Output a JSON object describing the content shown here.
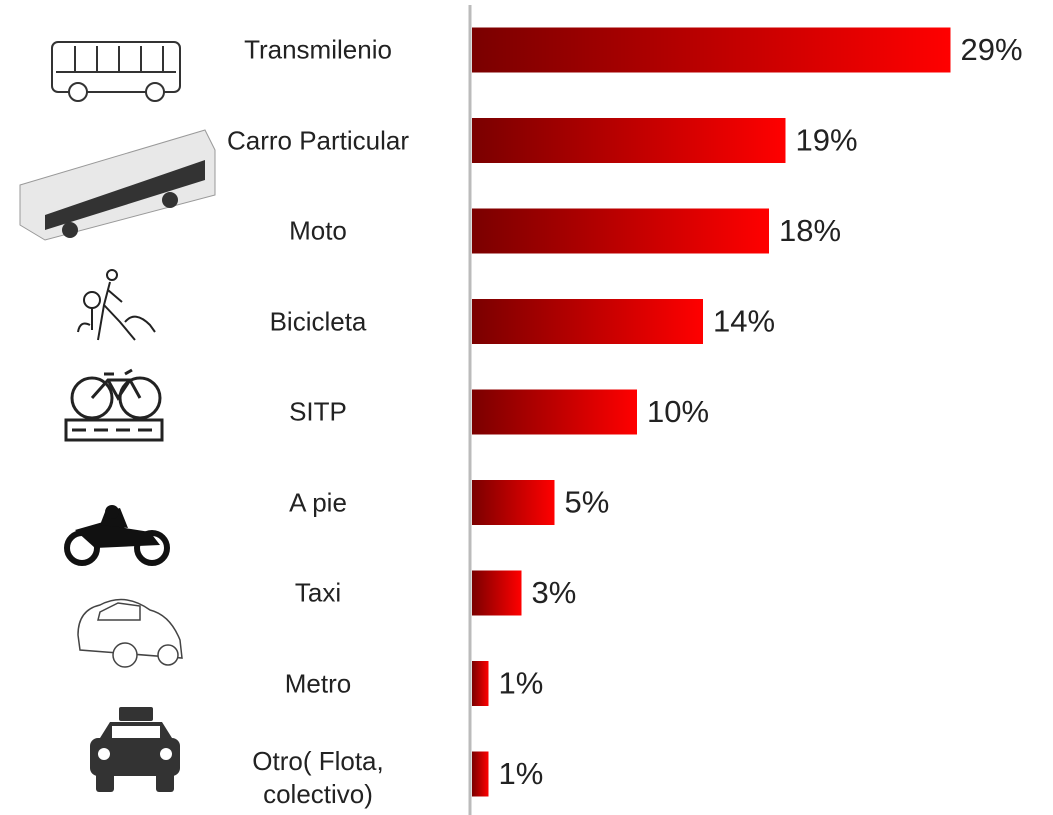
{
  "chart_data": {
    "type": "bar",
    "orientation": "horizontal",
    "categories": [
      "Transmilenio",
      "Carro Particular",
      "Moto",
      "Bicicleta",
      "SITP",
      "A pie",
      "Taxi",
      "Metro",
      "Otro( Flota, colectivo)"
    ],
    "values": [
      29,
      19,
      18,
      14,
      10,
      5,
      3,
      1,
      1
    ],
    "value_labels": [
      "29%",
      "19%",
      "18%",
      "14%",
      "10%",
      "5%",
      "3%",
      "1%",
      "1%"
    ],
    "color": "#ff0000"
  }
}
